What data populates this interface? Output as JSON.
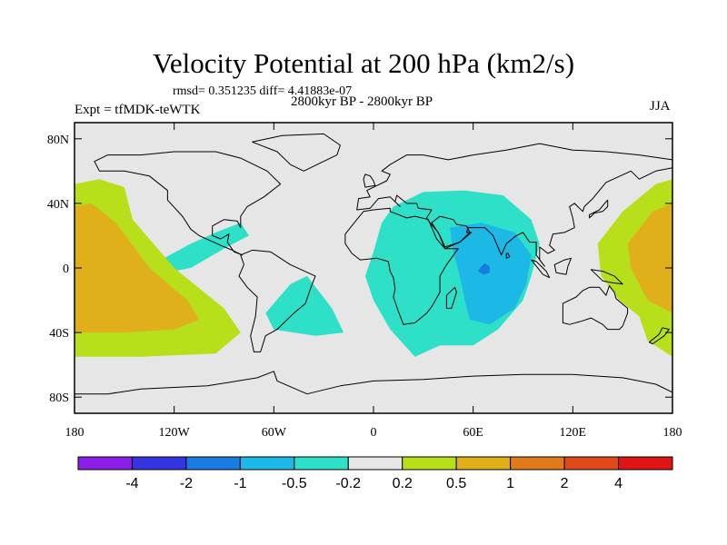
{
  "header": {
    "title": "Velocity Potential at 200 hPa (km2/s)",
    "stats": "rmsd= 0.351235  diff= 4.41883e-07",
    "experiment": "Expt = tfMDK-teWTK",
    "period": "2800kyr BP - 2800kyr BP",
    "season": "JJA"
  },
  "chart_data": {
    "type": "heatmap",
    "subtype": "filled-contour-map",
    "projection": "cylindrical-equidistant",
    "title": "Velocity Potential at 200 hPa (km2/s)",
    "xlabel": "",
    "ylabel": "",
    "xlim": [
      -180,
      180
    ],
    "ylim": [
      -90,
      90
    ],
    "x_ticks": [
      -180,
      -120,
      -60,
      0,
      60,
      120,
      180
    ],
    "x_tick_labels": [
      "180",
      "120W",
      "60W",
      "0",
      "60E",
      "120E",
      "180"
    ],
    "y_ticks": [
      80,
      40,
      0,
      -40,
      -80
    ],
    "y_tick_labels": [
      "80N",
      "40N",
      "0",
      "40S",
      "80S"
    ],
    "contour_levels": [
      -4,
      -2,
      -1,
      -0.5,
      -0.2,
      0.2,
      0.5,
      1,
      2,
      4
    ],
    "level_labels": [
      "-4",
      "-2",
      "-1",
      "-0.5",
      "-0.2",
      "0.2",
      "0.5",
      "1",
      "2",
      "4"
    ],
    "colors": [
      "#8a1ee6",
      "#3434e0",
      "#1a7ce0",
      "#1cb8e6",
      "#2ee0c8",
      "#e6e6e6",
      "#b8e01a",
      "#e0b01a",
      "#e07a1a",
      "#e04a1a",
      "#e01414"
    ],
    "regions": [
      {
        "name": "indian-ocean-negative",
        "range": "-0.5 to -0.2",
        "color_index": 4,
        "points": [
          [
            12,
            38
          ],
          [
            30,
            47
          ],
          [
            55,
            48
          ],
          [
            78,
            45
          ],
          [
            95,
            30
          ],
          [
            100,
            15
          ],
          [
            95,
            -5
          ],
          [
            90,
            -20
          ],
          [
            75,
            -38
          ],
          [
            60,
            -48
          ],
          [
            40,
            -48
          ],
          [
            25,
            -55
          ],
          [
            10,
            -38
          ],
          [
            0,
            -20
          ],
          [
            -5,
            -5
          ],
          [
            0,
            10
          ],
          [
            5,
            28
          ]
        ]
      },
      {
        "name": "indian-ocean-minimum",
        "range": "-1 to -0.5",
        "color_index": 3,
        "points": [
          [
            46,
            25
          ],
          [
            65,
            28
          ],
          [
            85,
            22
          ],
          [
            95,
            8
          ],
          [
            92,
            -10
          ],
          [
            85,
            -25
          ],
          [
            70,
            -35
          ],
          [
            58,
            -32
          ],
          [
            55,
            -20
          ],
          [
            52,
            -5
          ],
          [
            48,
            10
          ]
        ]
      },
      {
        "name": "indian-ocean-core",
        "range": "-2 to -1",
        "color_index": 2,
        "points": [
          [
            64,
            0
          ],
          [
            67,
            3
          ],
          [
            70,
            1
          ],
          [
            70,
            -3
          ],
          [
            66,
            -4
          ],
          [
            63,
            -2
          ]
        ]
      },
      {
        "name": "caribbean-negative",
        "range": "-0.5 to -0.2",
        "color_index": 4,
        "points": [
          [
            -128,
            5
          ],
          [
            -110,
            15
          ],
          [
            -95,
            22
          ],
          [
            -80,
            28
          ],
          [
            -75,
            20
          ],
          [
            -90,
            12
          ],
          [
            -110,
            0
          ],
          [
            -125,
            -3
          ]
        ]
      },
      {
        "name": "south-atlantic-negative",
        "range": "-0.5 to -0.2",
        "color_index": 4,
        "points": [
          [
            -65,
            -28
          ],
          [
            -50,
            -10
          ],
          [
            -40,
            -5
          ],
          [
            -25,
            -25
          ],
          [
            -18,
            -40
          ],
          [
            -35,
            -42
          ],
          [
            -60,
            -38
          ]
        ]
      },
      {
        "name": "east-pacific-positive-outer",
        "range": "0.2 to 0.5",
        "color_index": 6,
        "points": [
          [
            -180,
            52
          ],
          [
            -165,
            55
          ],
          [
            -150,
            50
          ],
          [
            -145,
            30
          ],
          [
            -120,
            0
          ],
          [
            -90,
            -25
          ],
          [
            -80,
            -40
          ],
          [
            -95,
            -53
          ],
          [
            -140,
            -55
          ],
          [
            -180,
            -55
          ]
        ]
      },
      {
        "name": "east-pacific-positive-inner",
        "range": "0.5 to 1",
        "color_index": 7,
        "points": [
          [
            -180,
            38
          ],
          [
            -170,
            40
          ],
          [
            -155,
            28
          ],
          [
            -135,
            0
          ],
          [
            -112,
            -20
          ],
          [
            -105,
            -32
          ],
          [
            -120,
            -38
          ],
          [
            -150,
            -40
          ],
          [
            -180,
            -40
          ]
        ]
      },
      {
        "name": "west-pacific-positive-outer",
        "range": "0.2 to 0.5",
        "color_index": 6,
        "points": [
          [
            180,
            55
          ],
          [
            170,
            52
          ],
          [
            150,
            35
          ],
          [
            135,
            15
          ],
          [
            137,
            -5
          ],
          [
            148,
            -20
          ],
          [
            160,
            -30
          ],
          [
            165,
            -45
          ],
          [
            180,
            -55
          ]
        ]
      },
      {
        "name": "west-pacific-positive-inner",
        "range": "0.5 to 1",
        "color_index": 7,
        "points": [
          [
            180,
            40
          ],
          [
            168,
            35
          ],
          [
            153,
            15
          ],
          [
            155,
            0
          ],
          [
            165,
            -20
          ],
          [
            180,
            -28
          ]
        ]
      }
    ]
  },
  "colorbar": {
    "labels": [
      "-4",
      "-2",
      "-1",
      "-0.5",
      "-0.2",
      "0.2",
      "0.5",
      "1",
      "2",
      "4"
    ]
  }
}
